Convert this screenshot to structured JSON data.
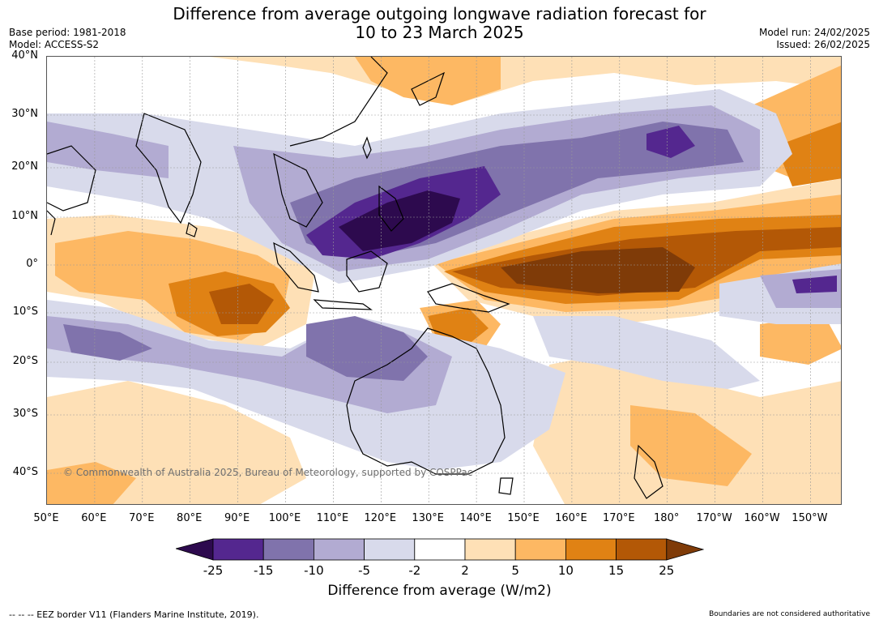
{
  "title": {
    "line1": "Difference from average outgoing longwave radiation forecast for",
    "line2": "10 to 23 March 2025"
  },
  "meta": {
    "base_period": "Base period: 1981-2018",
    "model": "Model: ACCESS-S2",
    "model_run": "Model run: 24/02/2025",
    "issued": "Issued: 26/02/2025"
  },
  "map": {
    "lat_labels": [
      "40°N",
      "30°N",
      "20°N",
      "10°N",
      "0°",
      "10°S",
      "20°S",
      "30°S",
      "40°S"
    ],
    "lon_labels": [
      "50°E",
      "60°E",
      "70°E",
      "80°E",
      "90°E",
      "100°E",
      "110°E",
      "120°E",
      "130°E",
      "140°E",
      "150°E",
      "160°E",
      "170°E",
      "180°",
      "170°W",
      "160°W",
      "150°W"
    ],
    "copyright": "© Commonwealth of Australia 2025, Bureau of Meteorology, supported by COSPPac",
    "colors": {
      "below_-25": "#2d0a4e",
      "-25_-15": "#54278f",
      "-15_-10": "#8073ac",
      "-10_-5": "#b2abd2",
      "-5_-2": "#d8daeb",
      "-2_2": "#ffffff",
      "2_5": "#fee0b6",
      "5_10": "#fdb863",
      "10_15": "#e08214",
      "15_25": "#b35806",
      "above_25": "#7f3b08"
    }
  },
  "colorbar": {
    "ticks": [
      "-25",
      "-15",
      "-10",
      "-5",
      "-2",
      "2",
      "5",
      "10",
      "15",
      "25"
    ],
    "label": "Difference from average (W/m2)"
  },
  "footer": {
    "eez": "--  --  -- EEZ border V11 (Flanders Marine Institute, 2019).",
    "disclaimer": "Boundaries are not considered authoritative"
  }
}
